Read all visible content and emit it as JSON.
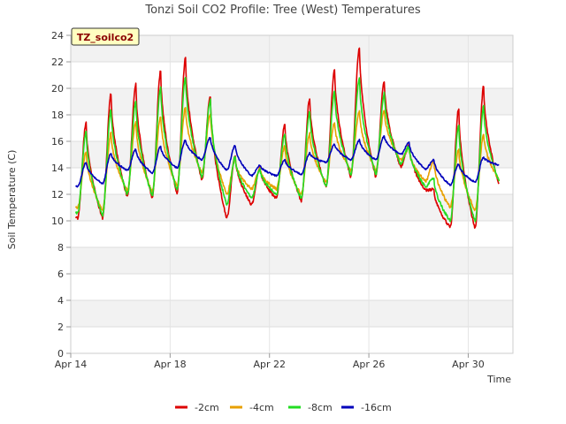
{
  "chart_data": {
    "type": "line",
    "title": "Tonzi Soil CO2 Profile: Tree (West) Temperatures",
    "badge": "TZ_soilco2",
    "xlabel": "Time",
    "ylabel": "Soil Temperature (C)",
    "ylim": [
      0,
      24
    ],
    "xlim_days": [
      0,
      17.8
    ],
    "y_ticks": [
      0,
      2,
      4,
      6,
      8,
      10,
      12,
      14,
      16,
      18,
      20,
      22,
      24
    ],
    "x_ticks": [
      {
        "day": 0,
        "label": "Apr 14"
      },
      {
        "day": 4,
        "label": "Apr 18"
      },
      {
        "day": 8,
        "label": "Apr 22"
      },
      {
        "day": 12,
        "label": "Apr 26"
      },
      {
        "day": 16,
        "label": "Apr 30"
      }
    ],
    "grid": true,
    "legend_position": "bottom",
    "x_unit": "days since Apr 14",
    "series": [
      {
        "name": "-2cm",
        "color": "#dd0000",
        "mins": [
          10.2,
          10.2,
          11.8,
          11.7,
          12.1,
          13.1,
          10.2,
          11.2,
          11.7,
          11.5,
          12.5,
          13.3,
          13.3,
          14.1,
          12.3,
          9.5,
          9.4,
          12.5
        ],
        "peaks": [
          17.4,
          19.6,
          20.3,
          21.3,
          22.3,
          19.4,
          14.9,
          14.0,
          17.3,
          19.2,
          21.4,
          23.1,
          20.5,
          15.7,
          12.4,
          18.5,
          20.2
        ]
      },
      {
        "name": "-4cm",
        "color": "#e8a000",
        "mins": [
          11.0,
          10.8,
          12.3,
          12.2,
          12.6,
          13.6,
          12.0,
          12.4,
          12.4,
          12.0,
          12.9,
          13.8,
          13.8,
          14.6,
          13.0,
          11.0,
          10.8,
          13.0
        ],
        "peaks": [
          15.2,
          16.6,
          17.4,
          17.9,
          18.6,
          18.1,
          14.6,
          13.9,
          15.6,
          16.6,
          17.4,
          18.3,
          18.3,
          15.4,
          14.5,
          15.4,
          16.5
        ]
      },
      {
        "name": "-8cm",
        "color": "#22dd22",
        "mins": [
          10.6,
          10.4,
          12.0,
          11.9,
          12.3,
          13.3,
          11.2,
          11.7,
          12.0,
          11.7,
          12.6,
          13.5,
          13.5,
          14.3,
          12.6,
          10.0,
          10.0,
          12.8
        ],
        "peaks": [
          16.7,
          18.4,
          19.0,
          20.1,
          20.9,
          19.1,
          14.8,
          13.9,
          16.6,
          18.2,
          19.8,
          20.8,
          19.6,
          15.6,
          13.2,
          17.2,
          18.6
        ]
      },
      {
        "name": "-16cm",
        "color": "#0000bb",
        "mins": [
          12.6,
          12.8,
          13.8,
          13.6,
          14.0,
          14.6,
          13.8,
          13.4,
          13.4,
          13.5,
          14.4,
          14.6,
          14.6,
          15.0,
          13.9,
          12.7,
          12.9,
          14.2
        ],
        "peaks": [
          14.4,
          15.1,
          15.4,
          15.6,
          16.1,
          16.3,
          15.7,
          14.2,
          14.6,
          15.1,
          15.8,
          16.1,
          16.4,
          15.9,
          14.6,
          14.3,
          14.8
        ]
      }
    ]
  }
}
